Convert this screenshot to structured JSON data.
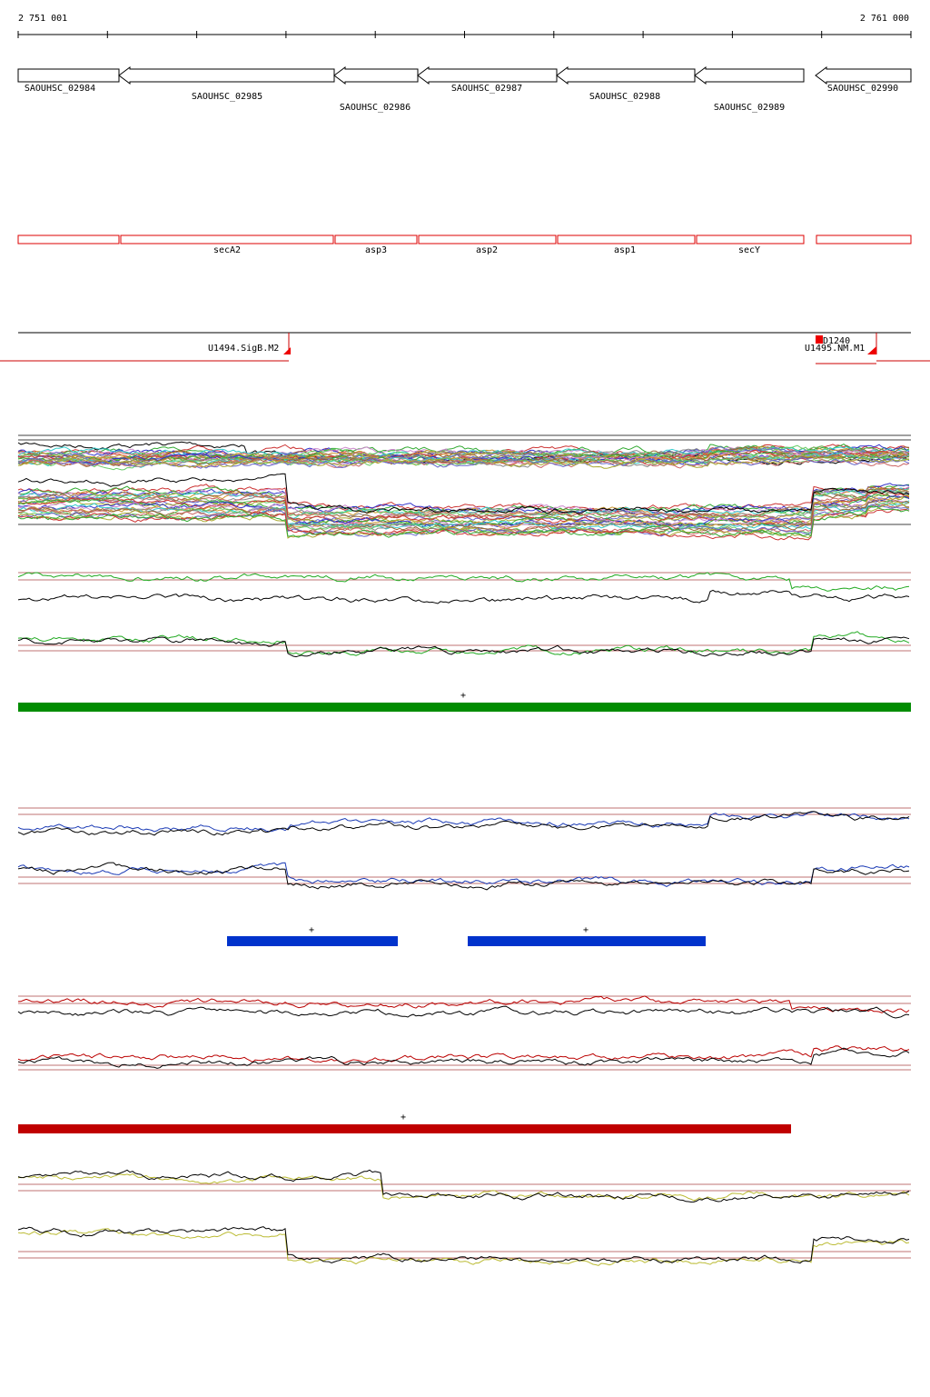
{
  "ruler": {
    "start": "2 751 001",
    "end": "2 761 000"
  },
  "genes": [
    "SAOUHSC_02984",
    "SAOUHSC_02985",
    "SAOUHSC_02986",
    "SAOUHSC_02987",
    "SAOUHSC_02988",
    "SAOUHSC_02989",
    "SAOUHSC_02990"
  ],
  "features": [
    "secA2",
    "asp3",
    "asp2",
    "asp1",
    "secY"
  ],
  "promoters": [
    "U1494.SigB.M2",
    "D1240",
    "U1495.NM.M1"
  ],
  "strand": "+"
}
